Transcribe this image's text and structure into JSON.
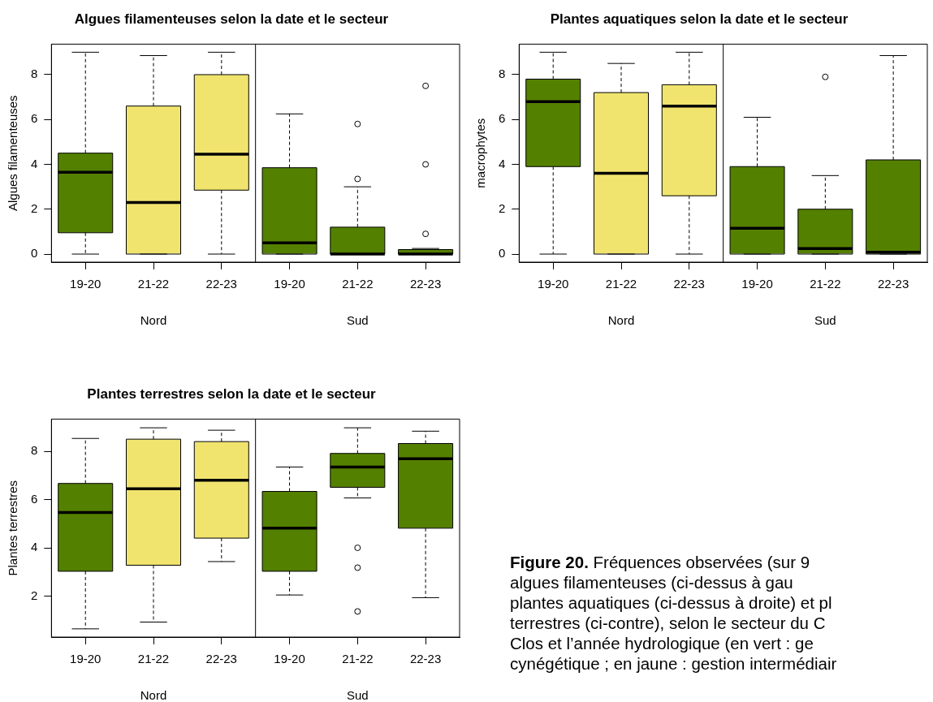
{
  "chart_data": [
    {
      "type": "box",
      "title": "Algues filamenteuses selon la date et le secteur",
      "ylabel": "Algues filamenteuses",
      "categories": [
        "19-20",
        "21-22",
        "22-23",
        "19-20",
        "21-22",
        "22-23"
      ],
      "colors": [
        "#548000",
        "#f0e46e",
        "#f0e46e",
        "#548000",
        "#548000",
        "#548000"
      ],
      "boxes": [
        {
          "low": 0,
          "q1": 0.95,
          "median": 3.65,
          "q3": 4.5,
          "high": 9
        },
        {
          "low": 0,
          "q1": 0,
          "median": 2.3,
          "q3": 6.6,
          "high": 8.85
        },
        {
          "low": 0,
          "q1": 2.85,
          "median": 4.45,
          "q3": 8,
          "high": 9
        },
        {
          "low": 0,
          "q1": 0,
          "median": 0.5,
          "q3": 3.85,
          "high": 6.25
        },
        {
          "low": 0,
          "q1": 0,
          "median": 0,
          "q3": 1.2,
          "high": 3,
          "outliers": [
            3.35,
            5.8
          ]
        },
        {
          "low": 0,
          "q1": 0,
          "median": 0,
          "q3": 0.2,
          "high": 0.25,
          "outliers": [
            0.9,
            4,
            7.5
          ]
        }
      ],
      "ylim": [
        -0.36,
        9.36
      ],
      "yticks": [
        0,
        2,
        4,
        6,
        8
      ],
      "annotations": [
        "Nord",
        "Sud"
      ]
    },
    {
      "type": "box",
      "title": "Plantes aquatiques selon la date et le secteur",
      "ylabel": "macrophytes",
      "categories": [
        "19-20",
        "21-22",
        "22-23",
        "19-20",
        "21-22",
        "22-23"
      ],
      "colors": [
        "#548000",
        "#f0e46e",
        "#f0e46e",
        "#548000",
        "#548000",
        "#548000"
      ],
      "boxes": [
        {
          "low": 0,
          "q1": 3.9,
          "median": 6.8,
          "q3": 7.8,
          "high": 9
        },
        {
          "low": 0,
          "q1": 0,
          "median": 3.6,
          "q3": 7.2,
          "high": 8.5
        },
        {
          "low": 0,
          "q1": 2.6,
          "median": 6.6,
          "q3": 7.55,
          "high": 9
        },
        {
          "low": 0,
          "q1": 0,
          "median": 1.15,
          "q3": 3.9,
          "high": 6.1
        },
        {
          "low": 0,
          "q1": 0,
          "median": 0.25,
          "q3": 2,
          "high": 3.5,
          "outliers": [
            7.9
          ]
        },
        {
          "low": 0,
          "q1": 0,
          "median": 0.08,
          "q3": 4.2,
          "high": 8.85
        }
      ],
      "ylim": [
        -0.36,
        9.36
      ],
      "yticks": [
        0,
        2,
        4,
        6,
        8
      ],
      "annotations": [
        "Nord",
        "Sud"
      ]
    },
    {
      "type": "box",
      "title": "Plantes terrestres selon la date et le secteur",
      "ylabel": "Plantes terrestres",
      "categories": [
        "19-20",
        "21-22",
        "22-23",
        "19-20",
        "21-22",
        "22-23"
      ],
      "colors": [
        "#548000",
        "#f0e46e",
        "#f0e46e",
        "#548000",
        "#548000",
        "#548000"
      ],
      "boxes": [
        {
          "low": 0.66,
          "q1": 3.04,
          "median": 5.47,
          "q3": 6.67,
          "high": 8.53
        },
        {
          "low": 0.94,
          "q1": 3.29,
          "median": 6.45,
          "q3": 8.5,
          "high": 8.97
        },
        {
          "low": 3.44,
          "q1": 4.41,
          "median": 6.8,
          "q3": 8.4,
          "high": 8.87
        },
        {
          "low": 2.06,
          "q1": 3.04,
          "median": 4.82,
          "q3": 6.34,
          "high": 7.35
        },
        {
          "low": 6.07,
          "q1": 6.51,
          "median": 7.35,
          "q3": 7.91,
          "high": 8.97,
          "outliers": [
            4.01,
            3.19,
            1.38
          ]
        },
        {
          "low": 1.95,
          "q1": 4.82,
          "median": 7.69,
          "q3": 8.32,
          "high": 8.83
        }
      ],
      "ylim": [
        0.32,
        9.33
      ],
      "yticks": [
        2,
        4,
        6,
        8
      ],
      "annotations": [
        "Nord",
        "Sud"
      ]
    },
    {
      "type": "other",
      "annotations": [
        "Figure 20.",
        "Fréquences observées (sur 9\nalgues filamenteuses (ci-dessus à gau\nplantes aquatiques (ci-dessus à droite) et pl\nterrestres (ci-contre), selon le secteur du C\nClos et l’année hydrologique (en vert : ge\ncynégétique ; en jaune : gestion intermédiair"
      ]
    }
  ]
}
